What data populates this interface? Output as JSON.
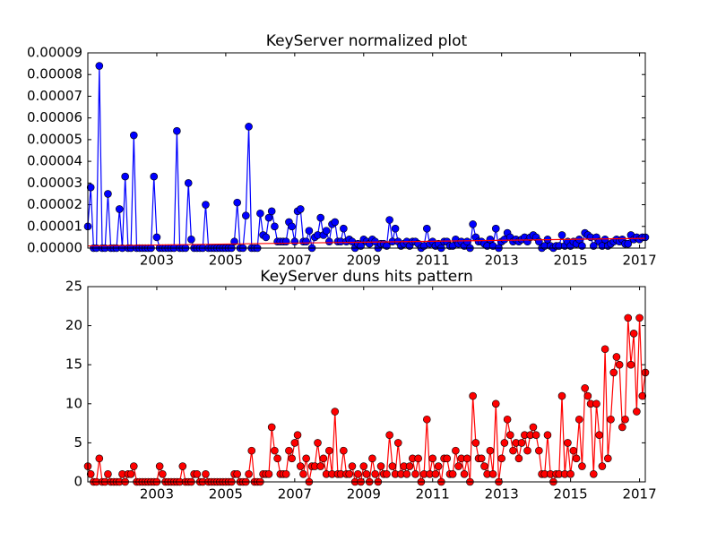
{
  "chart_data": [
    {
      "type": "line",
      "title": "KeyServer normalized plot",
      "x": [
        2001,
        2001.083,
        2001.167,
        2001.25,
        2001.333,
        2001.417,
        2001.5,
        2001.583,
        2001.667,
        2001.75,
        2001.833,
        2001.917,
        2002,
        2002.083,
        2002.167,
        2002.25,
        2002.333,
        2002.417,
        2002.5,
        2002.583,
        2002.667,
        2002.75,
        2002.833,
        2002.917,
        2003,
        2003.083,
        2003.167,
        2003.25,
        2003.333,
        2003.417,
        2003.5,
        2003.583,
        2003.667,
        2003.75,
        2003.833,
        2003.917,
        2004,
        2004.083,
        2004.167,
        2004.25,
        2004.333,
        2004.417,
        2004.5,
        2004.583,
        2004.667,
        2004.75,
        2004.833,
        2004.917,
        2005,
        2005.083,
        2005.167,
        2005.25,
        2005.333,
        2005.417,
        2005.5,
        2005.583,
        2005.667,
        2005.75,
        2005.833,
        2005.917,
        2006,
        2006.083,
        2006.167,
        2006.25,
        2006.333,
        2006.417,
        2006.5,
        2006.583,
        2006.667,
        2006.75,
        2006.833,
        2006.917,
        2007,
        2007.083,
        2007.167,
        2007.25,
        2007.333,
        2007.417,
        2007.5,
        2007.583,
        2007.667,
        2007.75,
        2007.833,
        2007.917,
        2008,
        2008.083,
        2008.167,
        2008.25,
        2008.333,
        2008.417,
        2008.5,
        2008.583,
        2008.667,
        2008.75,
        2008.833,
        2008.917,
        2009,
        2009.083,
        2009.167,
        2009.25,
        2009.333,
        2009.417,
        2009.5,
        2009.583,
        2009.667,
        2009.75,
        2009.833,
        2009.917,
        2010,
        2010.083,
        2010.167,
        2010.25,
        2010.333,
        2010.417,
        2010.5,
        2010.583,
        2010.667,
        2010.75,
        2010.833,
        2010.917,
        2011,
        2011.083,
        2011.167,
        2011.25,
        2011.333,
        2011.417,
        2011.5,
        2011.583,
        2011.667,
        2011.75,
        2011.833,
        2011.917,
        2012,
        2012.083,
        2012.167,
        2012.25,
        2012.333,
        2012.417,
        2012.5,
        2012.583,
        2012.667,
        2012.75,
        2012.833,
        2012.917,
        2013,
        2013.083,
        2013.167,
        2013.25,
        2013.333,
        2013.417,
        2013.5,
        2013.583,
        2013.667,
        2013.75,
        2013.833,
        2013.917,
        2014,
        2014.083,
        2014.167,
        2014.25,
        2014.333,
        2014.417,
        2014.5,
        2014.583,
        2014.667,
        2014.75,
        2014.833,
        2014.917,
        2015,
        2015.083,
        2015.167,
        2015.25,
        2015.333,
        2015.417,
        2015.5,
        2015.583,
        2015.667,
        2015.75,
        2015.833,
        2015.917,
        2016,
        2016.083,
        2016.167,
        2016.25,
        2016.333,
        2016.417,
        2016.5,
        2016.583,
        2016.667,
        2016.75,
        2016.833,
        2016.917,
        2017,
        2017.083,
        2017.167
      ],
      "series": [
        {
          "color": "#0000ff",
          "marker": true,
          "values": [
            1e-05,
            2.8e-05,
            0,
            0,
            8.4e-05,
            0,
            0,
            2.5e-05,
            0,
            0,
            0,
            1.8e-05,
            0,
            3.3e-05,
            0,
            0,
            5.2e-05,
            0,
            0,
            0,
            0,
            0,
            0,
            3.3e-05,
            5e-06,
            0,
            0,
            0,
            0,
            0,
            0,
            5.4e-05,
            0,
            0,
            0,
            3e-05,
            4e-06,
            0,
            0,
            0,
            0,
            2e-05,
            0,
            0,
            0,
            0,
            0,
            0,
            0,
            0,
            0,
            3e-06,
            2.1e-05,
            0,
            0,
            1.5e-05,
            5.6e-05,
            0,
            0,
            0,
            1.6e-05,
            6e-06,
            5e-06,
            1.4e-05,
            1.7e-05,
            1e-05,
            3e-06,
            3e-06,
            3e-06,
            3e-06,
            1.2e-05,
            1e-05,
            3e-06,
            1.7e-05,
            1.8e-05,
            3e-06,
            3e-06,
            8e-06,
            0,
            5e-06,
            6e-06,
            1.4e-05,
            6e-06,
            8e-06,
            3e-06,
            1.1e-05,
            1.2e-05,
            3e-06,
            3e-06,
            9e-06,
            3e-06,
            4e-06,
            3e-06,
            0,
            2e-06,
            1e-06,
            4e-06,
            3e-06,
            2e-06,
            4e-06,
            3e-06,
            0,
            2e-06,
            2e-06,
            1e-06,
            1.3e-05,
            3e-06,
            9e-06,
            3e-06,
            1e-06,
            2e-06,
            3e-06,
            1e-06,
            3e-06,
            3e-06,
            2e-06,
            0,
            1e-06,
            9e-06,
            2e-06,
            3e-06,
            1e-06,
            2e-06,
            0,
            3e-06,
            3e-06,
            1e-06,
            1e-06,
            4e-06,
            2e-06,
            3e-06,
            1e-06,
            3e-06,
            0,
            1.1e-05,
            5e-06,
            3e-06,
            3e-06,
            2e-06,
            1e-06,
            4e-06,
            1e-06,
            9e-06,
            0,
            3e-06,
            4e-06,
            7e-06,
            5e-06,
            3e-06,
            4e-06,
            3e-06,
            4e-06,
            5e-06,
            3e-06,
            5e-06,
            6e-06,
            5e-06,
            3e-06,
            0,
            1e-06,
            4e-06,
            1e-06,
            0,
            1e-06,
            1e-06,
            6e-06,
            1e-06,
            3e-06,
            1e-06,
            3e-06,
            2e-06,
            4e-06,
            1e-06,
            7e-06,
            6e-06,
            5e-06,
            1e-06,
            5e-06,
            3e-06,
            1e-06,
            4e-06,
            1e-06,
            2e-06,
            3e-06,
            4e-06,
            3e-06,
            4e-06,
            2e-06,
            2e-06,
            6e-06,
            4e-06,
            5e-06,
            4e-06,
            5e-06,
            5e-06
          ]
        },
        {
          "color": "#ff0000",
          "marker": false,
          "x": [
            2001,
            2017.167
          ],
          "values": [
            1e-06,
            4.5e-06
          ]
        }
      ],
      "xlim": [
        2001,
        2017.167
      ],
      "xticks": [
        2003,
        2005,
        2007,
        2009,
        2011,
        2013,
        2015,
        2017
      ],
      "ylim": [
        0,
        9e-05
      ],
      "yticks": [
        {
          "value": 0,
          "label": "0.00000"
        },
        1e-05,
        2e-05,
        3e-05,
        4e-05,
        5e-05,
        6e-05,
        7e-05,
        8e-05,
        9e-05
      ]
    },
    {
      "type": "line",
      "title": "KeyServer duns hits pattern",
      "x": [
        2001,
        2001.083,
        2001.167,
        2001.25,
        2001.333,
        2001.417,
        2001.5,
        2001.583,
        2001.667,
        2001.75,
        2001.833,
        2001.917,
        2002,
        2002.083,
        2002.167,
        2002.25,
        2002.333,
        2002.417,
        2002.5,
        2002.583,
        2002.667,
        2002.75,
        2002.833,
        2002.917,
        2003,
        2003.083,
        2003.167,
        2003.25,
        2003.333,
        2003.417,
        2003.5,
        2003.583,
        2003.667,
        2003.75,
        2003.833,
        2003.917,
        2004,
        2004.083,
        2004.167,
        2004.25,
        2004.333,
        2004.417,
        2004.5,
        2004.583,
        2004.667,
        2004.75,
        2004.833,
        2004.917,
        2005,
        2005.083,
        2005.167,
        2005.25,
        2005.333,
        2005.417,
        2005.5,
        2005.583,
        2005.667,
        2005.75,
        2005.833,
        2005.917,
        2006,
        2006.083,
        2006.167,
        2006.25,
        2006.333,
        2006.417,
        2006.5,
        2006.583,
        2006.667,
        2006.75,
        2006.833,
        2006.917,
        2007,
        2007.083,
        2007.167,
        2007.25,
        2007.333,
        2007.417,
        2007.5,
        2007.583,
        2007.667,
        2007.75,
        2007.833,
        2007.917,
        2008,
        2008.083,
        2008.167,
        2008.25,
        2008.333,
        2008.417,
        2008.5,
        2008.583,
        2008.667,
        2008.75,
        2008.833,
        2008.917,
        2009,
        2009.083,
        2009.167,
        2009.25,
        2009.333,
        2009.417,
        2009.5,
        2009.583,
        2009.667,
        2009.75,
        2009.833,
        2009.917,
        2010,
        2010.083,
        2010.167,
        2010.25,
        2010.333,
        2010.417,
        2010.5,
        2010.583,
        2010.667,
        2010.75,
        2010.833,
        2010.917,
        2011,
        2011.083,
        2011.167,
        2011.25,
        2011.333,
        2011.417,
        2011.5,
        2011.583,
        2011.667,
        2011.75,
        2011.833,
        2011.917,
        2012,
        2012.083,
        2012.167,
        2012.25,
        2012.333,
        2012.417,
        2012.5,
        2012.583,
        2012.667,
        2012.75,
        2012.833,
        2012.917,
        2013,
        2013.083,
        2013.167,
        2013.25,
        2013.333,
        2013.417,
        2013.5,
        2013.583,
        2013.667,
        2013.75,
        2013.833,
        2013.917,
        2014,
        2014.083,
        2014.167,
        2014.25,
        2014.333,
        2014.417,
        2014.5,
        2014.583,
        2014.667,
        2014.75,
        2014.833,
        2014.917,
        2015,
        2015.083,
        2015.167,
        2015.25,
        2015.333,
        2015.417,
        2015.5,
        2015.583,
        2015.667,
        2015.75,
        2015.833,
        2015.917,
        2016,
        2016.083,
        2016.167,
        2016.25,
        2016.333,
        2016.417,
        2016.5,
        2016.583,
        2016.667,
        2016.75,
        2016.833,
        2016.917,
        2017,
        2017.083,
        2017.167
      ],
      "series": [
        {
          "color": "#ff0000",
          "marker": true,
          "values": [
            2,
            1,
            0,
            0,
            3,
            0,
            0,
            1,
            0,
            0,
            0,
            0,
            1,
            0,
            1,
            1,
            2,
            0,
            0,
            0,
            0,
            0,
            0,
            0,
            0,
            2,
            1,
            0,
            0,
            0,
            0,
            0,
            0,
            2,
            0,
            0,
            0,
            1,
            1,
            0,
            0,
            1,
            0,
            0,
            0,
            0,
            0,
            0,
            0,
            0,
            0,
            1,
            1,
            0,
            0,
            0,
            1,
            4,
            0,
            0,
            0,
            1,
            1,
            1,
            7,
            4,
            3,
            1,
            1,
            1,
            4,
            3,
            5,
            6,
            2,
            1,
            3,
            0,
            2,
            2,
            5,
            2,
            3,
            1,
            4,
            1,
            9,
            1,
            1,
            4,
            1,
            1,
            2,
            0,
            1,
            0,
            2,
            1,
            0,
            3,
            1,
            0,
            2,
            1,
            1,
            6,
            2,
            1,
            5,
            1,
            2,
            1,
            2,
            3,
            1,
            3,
            0,
            1,
            8,
            1,
            3,
            1,
            2,
            0,
            3,
            3,
            1,
            1,
            4,
            2,
            3,
            1,
            3,
            0,
            11,
            5,
            3,
            3,
            2,
            1,
            4,
            1,
            10,
            0,
            3,
            5,
            8,
            6,
            4,
            5,
            3,
            5,
            6,
            4,
            6,
            7,
            6,
            4,
            1,
            1,
            6,
            1,
            0,
            1,
            1,
            11,
            1,
            5,
            1,
            4,
            3,
            8,
            2,
            12,
            11,
            10,
            1,
            10,
            6,
            2,
            17,
            3,
            8,
            14,
            16,
            15,
            7,
            8,
            21,
            15,
            19,
            9,
            21,
            11,
            14
          ]
        }
      ],
      "xlim": [
        2001,
        2017.167
      ],
      "xticks": [
        2003,
        2005,
        2007,
        2009,
        2011,
        2013,
        2015,
        2017
      ],
      "ylim": [
        0,
        25
      ],
      "yticks": [
        0,
        5,
        10,
        15,
        20,
        25
      ]
    }
  ]
}
